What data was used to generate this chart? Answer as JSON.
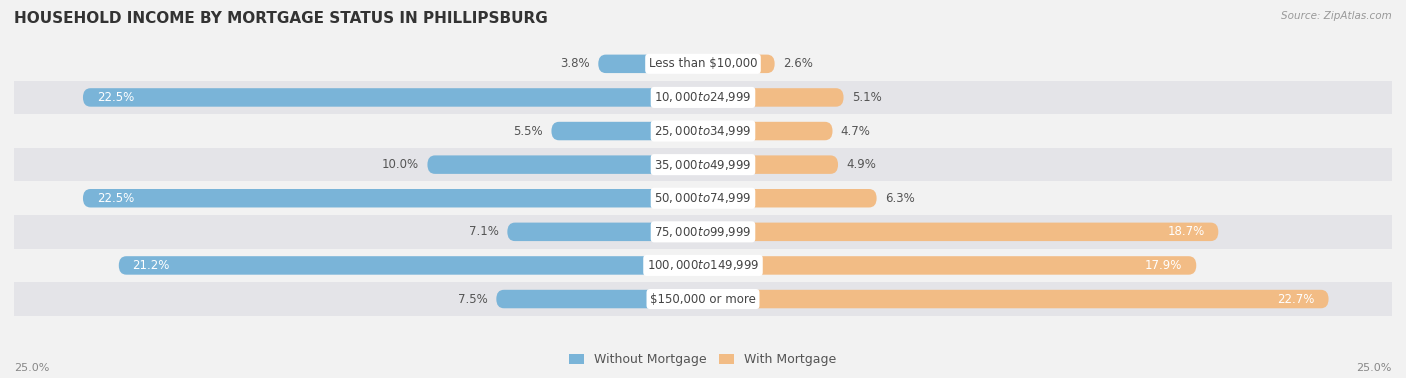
{
  "title": "HOUSEHOLD INCOME BY MORTGAGE STATUS IN PHILLIPSBURG",
  "source": "Source: ZipAtlas.com",
  "categories": [
    "Less than $10,000",
    "$10,000 to $24,999",
    "$25,000 to $34,999",
    "$35,000 to $49,999",
    "$50,000 to $74,999",
    "$75,000 to $99,999",
    "$100,000 to $149,999",
    "$150,000 or more"
  ],
  "without_mortgage": [
    3.8,
    22.5,
    5.5,
    10.0,
    22.5,
    7.1,
    21.2,
    7.5
  ],
  "with_mortgage": [
    2.6,
    5.1,
    4.7,
    4.9,
    6.3,
    18.7,
    17.9,
    22.7
  ],
  "color_without": "#7ab4d8",
  "color_with": "#f2bc85",
  "axis_limit": 25.0,
  "row_bg_light": "#f2f2f2",
  "row_bg_dark": "#e4e4e8",
  "label_fontsize": 8.5,
  "title_fontsize": 11,
  "bar_height": 0.55,
  "legend_labels": [
    "Without Mortgage",
    "With Mortgage"
  ]
}
